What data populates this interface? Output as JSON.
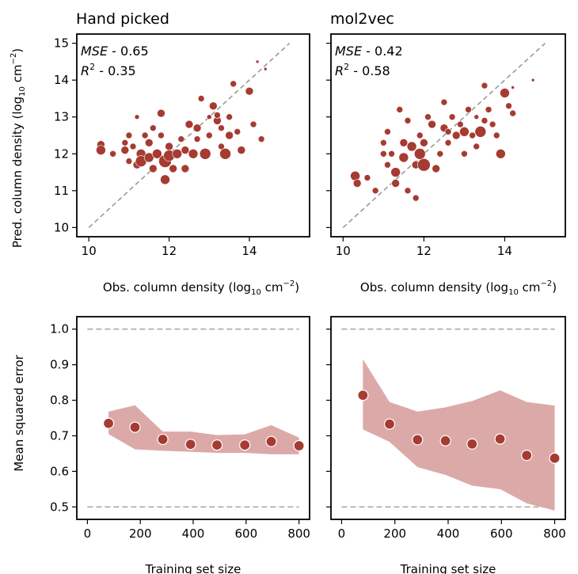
{
  "colors": {
    "point": "#a63b32",
    "point_edge": "#ffffff",
    "band": "#dca9a9",
    "reference_line": "#999999",
    "bound_line": "#aaaaaa"
  },
  "chart_data": [
    {
      "type": "scatter",
      "title": "Hand picked",
      "xlabel": "Obs. column density (log",
      "ylabel": "Pred. column density (log",
      "label_sub": "10",
      "label_unit": " cm",
      "label_sup": "−2",
      "label_close": ")",
      "xlim": [
        9.7,
        15.5
      ],
      "ylim": [
        9.75,
        15.25
      ],
      "xticks": [
        10,
        12,
        14
      ],
      "yticks": [
        10,
        11,
        12,
        13,
        14,
        15
      ],
      "metrics": [
        {
          "name": "MSE",
          "value": " - 0.65"
        },
        {
          "name": "R",
          "sup": "2",
          "value": " - 0.35"
        }
      ],
      "reference_line": {
        "from": [
          10,
          10
        ],
        "to": [
          15,
          15
        ],
        "style": "dashed"
      },
      "points": [
        {
          "x": 10.3,
          "y": 12.25,
          "s": 5
        },
        {
          "x": 10.3,
          "y": 12.1,
          "s": 6
        },
        {
          "x": 10.6,
          "y": 12.0,
          "s": 4
        },
        {
          "x": 10.9,
          "y": 12.3,
          "s": 4
        },
        {
          "x": 10.9,
          "y": 12.1,
          "s": 5
        },
        {
          "x": 11.0,
          "y": 12.5,
          "s": 4
        },
        {
          "x": 11.0,
          "y": 11.8,
          "s": 4
        },
        {
          "x": 11.1,
          "y": 12.2,
          "s": 4
        },
        {
          "x": 11.2,
          "y": 13.0,
          "s": 3
        },
        {
          "x": 11.2,
          "y": 11.7,
          "s": 5
        },
        {
          "x": 11.3,
          "y": 12.0,
          "s": 6
        },
        {
          "x": 11.3,
          "y": 11.8,
          "s": 7
        },
        {
          "x": 11.4,
          "y": 12.5,
          "s": 4
        },
        {
          "x": 11.5,
          "y": 12.3,
          "s": 5
        },
        {
          "x": 11.5,
          "y": 11.9,
          "s": 6
        },
        {
          "x": 11.6,
          "y": 12.7,
          "s": 4
        },
        {
          "x": 11.6,
          "y": 11.6,
          "s": 5
        },
        {
          "x": 11.7,
          "y": 12.0,
          "s": 6
        },
        {
          "x": 11.8,
          "y": 13.1,
          "s": 5
        },
        {
          "x": 11.8,
          "y": 12.5,
          "s": 4
        },
        {
          "x": 11.9,
          "y": 11.8,
          "s": 8
        },
        {
          "x": 11.9,
          "y": 11.3,
          "s": 6
        },
        {
          "x": 12.0,
          "y": 12.2,
          "s": 5
        },
        {
          "x": 12.0,
          "y": 11.95,
          "s": 7
        },
        {
          "x": 12.1,
          "y": 11.6,
          "s": 5
        },
        {
          "x": 12.2,
          "y": 12.0,
          "s": 6
        },
        {
          "x": 12.3,
          "y": 12.4,
          "s": 4
        },
        {
          "x": 12.4,
          "y": 11.6,
          "s": 5
        },
        {
          "x": 12.4,
          "y": 12.1,
          "s": 5
        },
        {
          "x": 12.5,
          "y": 12.8,
          "s": 5
        },
        {
          "x": 12.6,
          "y": 12.0,
          "s": 6
        },
        {
          "x": 12.7,
          "y": 12.4,
          "s": 4
        },
        {
          "x": 12.7,
          "y": 12.7,
          "s": 5
        },
        {
          "x": 12.8,
          "y": 13.5,
          "s": 4
        },
        {
          "x": 12.9,
          "y": 12.0,
          "s": 7
        },
        {
          "x": 13.0,
          "y": 12.5,
          "s": 4
        },
        {
          "x": 13.0,
          "y": 13.0,
          "s": 3
        },
        {
          "x": 13.1,
          "y": 13.3,
          "s": 5
        },
        {
          "x": 13.2,
          "y": 12.9,
          "s": 5
        },
        {
          "x": 13.2,
          "y": 13.05,
          "s": 4
        },
        {
          "x": 13.3,
          "y": 12.2,
          "s": 4
        },
        {
          "x": 13.3,
          "y": 12.7,
          "s": 4
        },
        {
          "x": 13.4,
          "y": 12.0,
          "s": 7
        },
        {
          "x": 13.5,
          "y": 13.0,
          "s": 4
        },
        {
          "x": 13.5,
          "y": 12.5,
          "s": 5
        },
        {
          "x": 13.6,
          "y": 13.9,
          "s": 4
        },
        {
          "x": 13.7,
          "y": 12.6,
          "s": 4
        },
        {
          "x": 13.8,
          "y": 12.1,
          "s": 5
        },
        {
          "x": 14.0,
          "y": 13.7,
          "s": 5
        },
        {
          "x": 14.1,
          "y": 12.8,
          "s": 4
        },
        {
          "x": 14.2,
          "y": 14.5,
          "s": 2
        },
        {
          "x": 14.3,
          "y": 12.4,
          "s": 4
        },
        {
          "x": 14.4,
          "y": 14.3,
          "s": 2
        }
      ]
    },
    {
      "type": "scatter",
      "title": "mol2vec",
      "xlabel": "Obs. column density (log",
      "label_sub": "10",
      "label_unit": " cm",
      "label_sup": "−2",
      "label_close": ")",
      "xlim": [
        9.7,
        15.5
      ],
      "ylim": [
        9.75,
        15.25
      ],
      "xticks": [
        10,
        12,
        14
      ],
      "yticks": [
        10,
        11,
        12,
        13,
        14,
        15
      ],
      "metrics": [
        {
          "name": "MSE",
          "value": " - 0.42"
        },
        {
          "name": "R",
          "sup": "2",
          "value": " - 0.58"
        }
      ],
      "reference_line": {
        "from": [
          10,
          10
        ],
        "to": [
          15,
          15
        ],
        "style": "dashed"
      },
      "points": [
        {
          "x": 10.3,
          "y": 11.4,
          "s": 6
        },
        {
          "x": 10.35,
          "y": 11.2,
          "s": 5
        },
        {
          "x": 10.6,
          "y": 11.35,
          "s": 4
        },
        {
          "x": 10.8,
          "y": 11.0,
          "s": 4
        },
        {
          "x": 11.0,
          "y": 12.3,
          "s": 4
        },
        {
          "x": 11.0,
          "y": 12.0,
          "s": 4
        },
        {
          "x": 11.1,
          "y": 11.7,
          "s": 4
        },
        {
          "x": 11.1,
          "y": 12.6,
          "s": 4
        },
        {
          "x": 11.2,
          "y": 12.0,
          "s": 4
        },
        {
          "x": 11.3,
          "y": 11.2,
          "s": 5
        },
        {
          "x": 11.3,
          "y": 11.5,
          "s": 6
        },
        {
          "x": 11.4,
          "y": 13.2,
          "s": 4
        },
        {
          "x": 11.5,
          "y": 12.3,
          "s": 5
        },
        {
          "x": 11.5,
          "y": 11.9,
          "s": 6
        },
        {
          "x": 11.6,
          "y": 11.0,
          "s": 4
        },
        {
          "x": 11.6,
          "y": 12.9,
          "s": 4
        },
        {
          "x": 11.7,
          "y": 12.2,
          "s": 6
        },
        {
          "x": 11.8,
          "y": 11.7,
          "s": 5
        },
        {
          "x": 11.8,
          "y": 10.8,
          "s": 4
        },
        {
          "x": 11.9,
          "y": 12.5,
          "s": 4
        },
        {
          "x": 11.9,
          "y": 12.0,
          "s": 7
        },
        {
          "x": 12.0,
          "y": 11.7,
          "s": 8
        },
        {
          "x": 12.0,
          "y": 12.3,
          "s": 5
        },
        {
          "x": 12.1,
          "y": 13.0,
          "s": 4
        },
        {
          "x": 12.2,
          "y": 12.8,
          "s": 5
        },
        {
          "x": 12.3,
          "y": 11.6,
          "s": 5
        },
        {
          "x": 12.4,
          "y": 12.0,
          "s": 4
        },
        {
          "x": 12.5,
          "y": 13.4,
          "s": 4
        },
        {
          "x": 12.5,
          "y": 12.7,
          "s": 5
        },
        {
          "x": 12.6,
          "y": 12.3,
          "s": 4
        },
        {
          "x": 12.6,
          "y": 12.6,
          "s": 4
        },
        {
          "x": 12.7,
          "y": 13.0,
          "s": 4
        },
        {
          "x": 12.8,
          "y": 12.5,
          "s": 5
        },
        {
          "x": 12.9,
          "y": 12.8,
          "s": 4
        },
        {
          "x": 13.0,
          "y": 12.6,
          "s": 6
        },
        {
          "x": 13.0,
          "y": 12.0,
          "s": 4
        },
        {
          "x": 13.1,
          "y": 13.2,
          "s": 4
        },
        {
          "x": 13.2,
          "y": 12.5,
          "s": 4
        },
        {
          "x": 13.3,
          "y": 13.0,
          "s": 3
        },
        {
          "x": 13.3,
          "y": 12.2,
          "s": 4
        },
        {
          "x": 13.4,
          "y": 12.6,
          "s": 7
        },
        {
          "x": 13.5,
          "y": 12.9,
          "s": 4
        },
        {
          "x": 13.5,
          "y": 13.85,
          "s": 4
        },
        {
          "x": 13.6,
          "y": 13.2,
          "s": 4
        },
        {
          "x": 13.7,
          "y": 12.8,
          "s": 4
        },
        {
          "x": 13.8,
          "y": 12.5,
          "s": 4
        },
        {
          "x": 13.9,
          "y": 12.0,
          "s": 6
        },
        {
          "x": 14.0,
          "y": 13.65,
          "s": 6
        },
        {
          "x": 14.1,
          "y": 13.3,
          "s": 4
        },
        {
          "x": 14.2,
          "y": 13.1,
          "s": 4
        },
        {
          "x": 14.2,
          "y": 13.8,
          "s": 2
        },
        {
          "x": 14.7,
          "y": 14.0,
          "s": 2
        }
      ]
    },
    {
      "type": "scatter",
      "title": "",
      "xlabel": "Training set size",
      "ylabel": "Mean squared error",
      "xlim": [
        -40,
        840
      ],
      "ylim": [
        0.465,
        1.035
      ],
      "xticks": [
        0,
        200,
        400,
        600,
        800
      ],
      "yticks": [
        0.5,
        0.6,
        0.7,
        0.8,
        0.9,
        1.0
      ],
      "bounds": [
        0.5,
        1.0
      ],
      "bound_x": [
        0,
        800
      ],
      "x": [
        80,
        180,
        285,
        390,
        490,
        595,
        695,
        800
      ],
      "y": [
        0.735,
        0.724,
        0.69,
        0.676,
        0.674,
        0.674,
        0.684,
        0.672
      ],
      "band_upper": [
        0.768,
        0.786,
        0.712,
        0.712,
        0.702,
        0.704,
        0.73,
        0.695
      ],
      "band_lower": [
        0.705,
        0.662,
        0.658,
        0.655,
        0.652,
        0.652,
        0.648,
        0.648
      ]
    },
    {
      "type": "scatter",
      "title": "",
      "xlabel": "Training set size",
      "xlim": [
        -40,
        840
      ],
      "ylim": [
        0.465,
        1.035
      ],
      "xticks": [
        0,
        200,
        400,
        600,
        800
      ],
      "yticks": [
        0.5,
        0.6,
        0.7,
        0.8,
        0.9,
        1.0
      ],
      "bounds": [
        0.5,
        1.0
      ],
      "bound_x": [
        0,
        800
      ],
      "x": [
        80,
        180,
        285,
        390,
        490,
        595,
        695,
        800
      ],
      "y": [
        0.814,
        0.733,
        0.689,
        0.686,
        0.677,
        0.691,
        0.645,
        0.637
      ],
      "band_upper": [
        0.915,
        0.795,
        0.768,
        0.78,
        0.798,
        0.828,
        0.795,
        0.785
      ],
      "band_lower": [
        0.718,
        0.683,
        0.612,
        0.59,
        0.56,
        0.55,
        0.51,
        0.49
      ]
    }
  ]
}
